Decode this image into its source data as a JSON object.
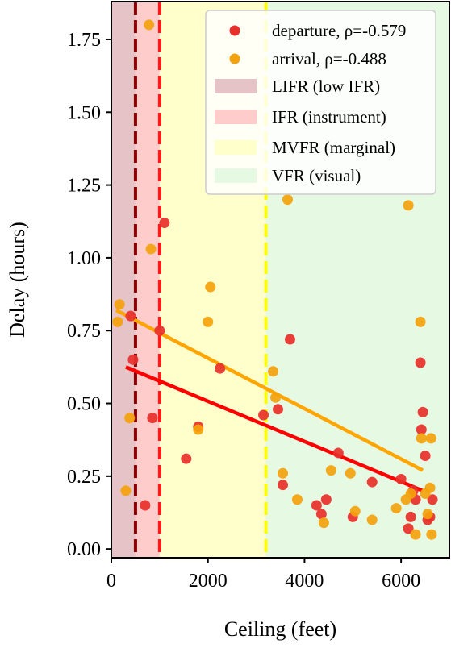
{
  "chart_data": {
    "type": "scatter",
    "xlabel": "Ceiling  (feet)",
    "ylabel": "Delay  (hours)",
    "xlim": [
      0,
      7000
    ],
    "ylim": [
      -0.03,
      1.88
    ],
    "xticks": [
      0,
      2000,
      4000,
      6000
    ],
    "xtick_labels": [
      "0",
      "2000",
      "4000",
      "6000"
    ],
    "yticks": [
      0,
      0.25,
      0.5,
      0.75,
      1.0,
      1.25,
      1.5,
      1.75
    ],
    "ytick_labels": [
      "0.00",
      "0.25",
      "0.50",
      "0.75",
      "1.00",
      "1.25",
      "1.50",
      "1.75"
    ],
    "grid": false,
    "legend_position": "top-right",
    "regions": [
      {
        "name": "LIFR (low IFR)",
        "x0": 0,
        "x1": 500,
        "color": "#e6c3c6"
      },
      {
        "name": "IFR (instrument)",
        "x0": 500,
        "x1": 1000,
        "color": "#ffcccc"
      },
      {
        "name": "MVFR (marginal)",
        "x0": 1000,
        "x1": 3200,
        "color": "#ffffcc"
      },
      {
        "name": "VFR (visual)",
        "x0": 3200,
        "x1": 7000,
        "color": "#e6f9e3"
      }
    ],
    "thresholds": [
      {
        "x": 500,
        "color": "#8b0000"
      },
      {
        "x": 1000,
        "color": "#ff1a1a"
      },
      {
        "x": 3200,
        "color": "#ffff00"
      }
    ],
    "series": [
      {
        "name": "departure, ρ=-0.579",
        "color": "#e8302a",
        "points": [
          [
            400,
            0.8
          ],
          [
            450,
            0.65
          ],
          [
            700,
            0.15
          ],
          [
            850,
            0.45
          ],
          [
            1000,
            0.75
          ],
          [
            1100,
            1.12
          ],
          [
            1550,
            0.31
          ],
          [
            1800,
            0.42
          ],
          [
            2250,
            0.62
          ],
          [
            3150,
            0.46
          ],
          [
            3450,
            0.48
          ],
          [
            3550,
            0.22
          ],
          [
            3700,
            0.72
          ],
          [
            4250,
            0.15
          ],
          [
            4350,
            0.12
          ],
          [
            4450,
            0.17
          ],
          [
            4700,
            0.33
          ],
          [
            5000,
            0.11
          ],
          [
            5400,
            0.23
          ],
          [
            6000,
            0.24
          ],
          [
            6150,
            0.07
          ],
          [
            6200,
            0.11
          ],
          [
            6250,
            0.2
          ],
          [
            6300,
            0.17
          ],
          [
            6400,
            0.64
          ],
          [
            6420,
            0.41
          ],
          [
            6450,
            0.47
          ],
          [
            6500,
            0.32
          ],
          [
            6550,
            0.1
          ],
          [
            6600,
            0.11
          ],
          [
            6650,
            0.17
          ]
        ],
        "trend": {
          "x": [
            300,
            6450
          ],
          "y": [
            0.625,
            0.2
          ]
        }
      },
      {
        "name": "arrival, ρ=-0.488",
        "color": "#f4a20c",
        "points": [
          [
            130,
            0.78
          ],
          [
            170,
            0.84
          ],
          [
            300,
            0.2
          ],
          [
            380,
            0.45
          ],
          [
            780,
            1.8
          ],
          [
            820,
            1.03
          ],
          [
            1800,
            0.41
          ],
          [
            2000,
            0.78
          ],
          [
            2050,
            0.9
          ],
          [
            3350,
            0.61
          ],
          [
            3400,
            0.52
          ],
          [
            3550,
            0.26
          ],
          [
            3650,
            1.2
          ],
          [
            3850,
            0.17
          ],
          [
            4400,
            0.09
          ],
          [
            4550,
            0.27
          ],
          [
            4950,
            0.26
          ],
          [
            5050,
            0.13
          ],
          [
            5400,
            0.1
          ],
          [
            5900,
            0.14
          ],
          [
            6100,
            0.17
          ],
          [
            6150,
            1.18
          ],
          [
            6200,
            0.19
          ],
          [
            6300,
            0.05
          ],
          [
            6400,
            0.78
          ],
          [
            6420,
            0.38
          ],
          [
            6500,
            0.19
          ],
          [
            6550,
            0.12
          ],
          [
            6600,
            0.21
          ],
          [
            6620,
            0.38
          ],
          [
            6630,
            0.05
          ]
        ],
        "trend": {
          "x": [
            100,
            6450
          ],
          "y": [
            0.82,
            0.27
          ]
        }
      }
    ]
  }
}
